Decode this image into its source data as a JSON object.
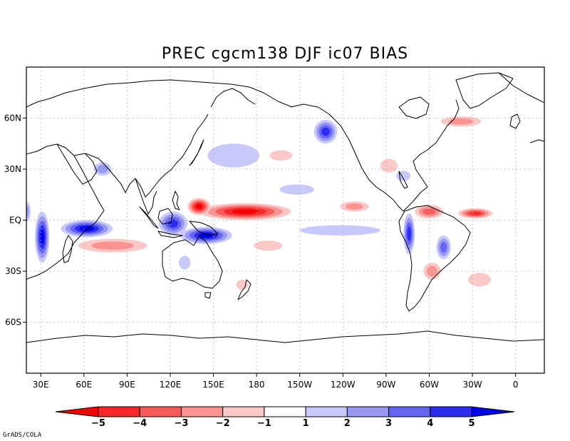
{
  "chart_data": {
    "type": "contour-map",
    "title": "PREC cgcm138 DJF ic07 BIAS",
    "credit": "GrADS/COLA",
    "x_axis": {
      "range_lon": [
        20,
        380
      ],
      "ticks": [
        {
          "lon": 30,
          "label": "30E"
        },
        {
          "lon": 60,
          "label": "60E"
        },
        {
          "lon": 90,
          "label": "90E"
        },
        {
          "lon": 120,
          "label": "120E"
        },
        {
          "lon": 150,
          "label": "150E"
        },
        {
          "lon": 180,
          "label": "180"
        },
        {
          "lon": 210,
          "label": "150W"
        },
        {
          "lon": 240,
          "label": "120W"
        },
        {
          "lon": 270,
          "label": "90W"
        },
        {
          "lon": 300,
          "label": "60W"
        },
        {
          "lon": 330,
          "label": "30W"
        },
        {
          "lon": 360,
          "label": "0"
        }
      ]
    },
    "y_axis": {
      "range_lat": [
        -90,
        90
      ],
      "ticks": [
        {
          "lat": 60,
          "label": "60N"
        },
        {
          "lat": 30,
          "label": "30N"
        },
        {
          "lat": 0,
          "label": "EQ"
        },
        {
          "lat": -30,
          "label": "30S"
        },
        {
          "lat": -60,
          "label": "60S"
        }
      ]
    },
    "colorbar": {
      "labels": [
        "−5",
        "−4",
        "−3",
        "−2",
        "−1",
        "1",
        "2",
        "3",
        "4",
        "5"
      ],
      "low_end_color": "#f50000",
      "high_end_color": "#0000f0",
      "bins": [
        {
          "color": "#f52a2a"
        },
        {
          "color": "#fa5a5a"
        },
        {
          "color": "#fb9393"
        },
        {
          "color": "#fbc8c8"
        },
        {
          "color": "#ffffff"
        },
        {
          "color": "#c8c8fa"
        },
        {
          "color": "#9898f3"
        },
        {
          "color": "#6464f5"
        },
        {
          "color": "#2c2cf0"
        }
      ]
    },
    "anomalies": [
      {
        "name": "tropical-west-pacific-dry",
        "lon": 172,
        "lat": 5,
        "rlon": 32,
        "rlat": 5,
        "level": -5
      },
      {
        "name": "west-pacific-dry-core-east",
        "lon": 140,
        "lat": 8,
        "rlon": 8,
        "rlat": 5,
        "level": -5
      },
      {
        "name": "south-pacific-wet-band",
        "lon": 145,
        "lat": -9,
        "rlon": 18,
        "rlat": 5,
        "level": 5
      },
      {
        "name": "maritime-continent-wet",
        "lon": 122,
        "lat": -2,
        "rlon": 10,
        "rlat": 7,
        "level": 4
      },
      {
        "name": "indian-ocean-wet",
        "lon": 62,
        "lat": -5,
        "rlon": 18,
        "rlat": 5,
        "level": 5
      },
      {
        "name": "south-indian-dry",
        "lon": 80,
        "lat": -15,
        "rlon": 24,
        "rlat": 4,
        "level": -2
      },
      {
        "name": "east-africa-coast-wet",
        "lon": 31,
        "lat": -10,
        "rlon": 5,
        "rlat": 15,
        "level": 5
      },
      {
        "name": "northwest-amazon-wet",
        "lon": 286,
        "lat": -8,
        "rlon": 4,
        "rlat": 12,
        "level": 4
      },
      {
        "name": "north-south-america-dry",
        "lon": 300,
        "lat": 5,
        "rlon": 10,
        "rlat": 4,
        "level": -3
      },
      {
        "name": "atlantic-itcz-dry",
        "lon": 332,
        "lat": 4,
        "rlon": 12,
        "rlat": 3,
        "level": -4
      },
      {
        "name": "east-pacific-itcz-dry",
        "lon": 248,
        "lat": 8,
        "rlon": 10,
        "rlat": 3,
        "level": -2
      },
      {
        "name": "equatorial-east-pacific-wet",
        "lon": 238,
        "lat": -6,
        "rlon": 28,
        "rlat": 3,
        "level": 1
      },
      {
        "name": "gulf-of-alaska-wet",
        "lon": 228,
        "lat": 52,
        "rlon": 8,
        "rlat": 7,
        "level": 4
      },
      {
        "name": "north-pacific-wet",
        "lon": 164,
        "lat": 38,
        "rlon": 18,
        "rlat": 7,
        "level": 1
      },
      {
        "name": "arabian-sea-wet",
        "lon": 73,
        "lat": 30,
        "rlon": 6,
        "rlat": 4,
        "level": 2
      },
      {
        "name": "hawaii-region-wet",
        "lon": 208,
        "lat": 18,
        "rlon": 12,
        "rlat": 3,
        "level": 1
      },
      {
        "name": "southeast-brazil-wet",
        "lon": 310,
        "lat": -16,
        "rlon": 5,
        "rlat": 7,
        "level": 3
      },
      {
        "name": "southern-brazil-dry",
        "lon": 302,
        "lat": -30,
        "rlon": 6,
        "rlat": 5,
        "level": -2
      },
      {
        "name": "north-atlantic-dry",
        "lon": 322,
        "lat": 58,
        "rlon": 14,
        "rlat": 3,
        "level": -2
      },
      {
        "name": "gulf-of-mexico-dry",
        "lon": 272,
        "lat": 32,
        "rlon": 6,
        "rlat": 4,
        "level": -1
      },
      {
        "name": "gulf-stream-wet",
        "lon": 282,
        "lat": 26,
        "rlon": 5,
        "rlat": 3,
        "level": 1
      },
      {
        "name": "south-atlantic-dry",
        "lon": 335,
        "lat": -35,
        "rlon": 8,
        "rlat": 4,
        "level": -1
      },
      {
        "name": "central-pacific-dry-patch",
        "lon": 197,
        "lat": 38,
        "rlon": 8,
        "rlat": 3,
        "level": -1
      },
      {
        "name": "australia-wet",
        "lon": 130,
        "lat": -25,
        "rlon": 4,
        "rlat": 4,
        "level": 1
      },
      {
        "name": "new-zealand-dry",
        "lon": 170,
        "lat": -38,
        "rlon": 4,
        "rlat": 3,
        "level": -1
      },
      {
        "name": "west-africa-wet",
        "lon": 20,
        "lat": 5,
        "rlon": 3,
        "rlat": 6,
        "level": 2
      },
      {
        "name": "south-pacific-convergence-dry",
        "lon": 188,
        "lat": -15,
        "rlon": 10,
        "rlat": 3,
        "level": -1
      }
    ]
  }
}
